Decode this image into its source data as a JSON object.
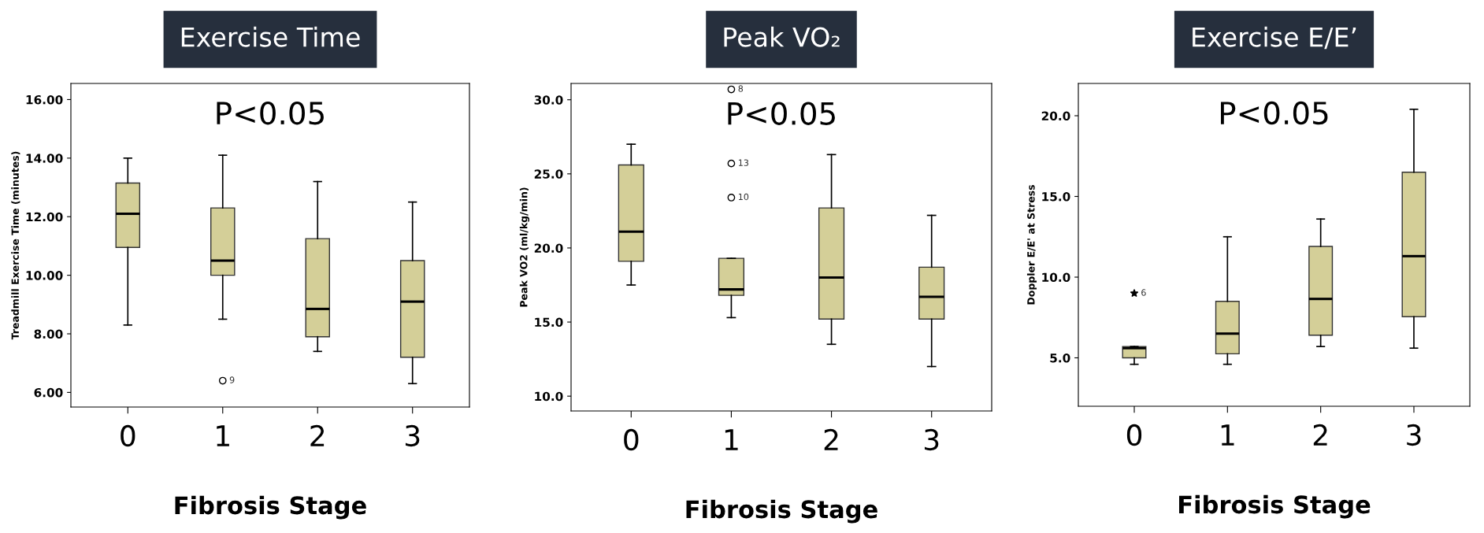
{
  "chart_data": [
    {
      "type": "box",
      "title": "Exercise Time",
      "xlabel": "Fibrosis Stage",
      "ylabel": "Treadmill Exercise Time (minutes)",
      "categories": [
        "0",
        "1",
        "2",
        "3"
      ],
      "color": "#d4cf98",
      "marker": "circle",
      "grid": false,
      "boxes": [
        {
          "low": 8.3,
          "q1": 10.95,
          "median": 12.1,
          "q3": 13.15,
          "high": 14.0
        },
        {
          "low": 8.5,
          "q1": 10.0,
          "median": 10.5,
          "q3": 12.3,
          "high": 14.1,
          "outliers": [
            6.4
          ]
        },
        {
          "low": 7.4,
          "q1": 7.9,
          "median": 8.85,
          "q3": 11.25,
          "high": 13.2
        },
        {
          "low": 6.3,
          "q1": 7.2,
          "median": 9.1,
          "q3": 10.5,
          "high": 12.5
        }
      ],
      "ylim": [
        5.5,
        16.55
      ],
      "yticks": [
        {
          "value": 6,
          "label": "6.00"
        },
        {
          "value": 8,
          "label": "8.00"
        },
        {
          "value": 10,
          "label": "10.00"
        },
        {
          "value": 12,
          "label": "12.00"
        },
        {
          "value": 14,
          "label": "14.00"
        },
        {
          "value": 16,
          "label": "16.00"
        }
      ],
      "annotations": [
        "P<0.05",
        "9"
      ]
    },
    {
      "type": "box",
      "title": "Peak VO₂",
      "xlabel": "Fibrosis Stage",
      "ylabel": "Peak VO2 (ml/kg/min)",
      "categories": [
        "0",
        "1",
        "2",
        "3"
      ],
      "color": "#d4cf98",
      "marker": "circle",
      "grid": false,
      "boxes": [
        {
          "low": 17.5,
          "q1": 19.1,
          "median": 21.1,
          "q3": 25.6,
          "high": 27.0
        },
        {
          "low": 15.3,
          "q1": 16.8,
          "median": 17.2,
          "q3": 19.3,
          "high": 19.3,
          "outliers": [
            23.4,
            25.7,
            30.7
          ]
        },
        {
          "low": 13.5,
          "q1": 15.2,
          "median": 18.0,
          "q3": 22.7,
          "high": 26.3
        },
        {
          "low": 12.0,
          "q1": 15.2,
          "median": 16.7,
          "q3": 18.7,
          "high": 22.2
        }
      ],
      "ylim": [
        9.0,
        31.1
      ],
      "yticks": [
        {
          "value": 10,
          "label": "10.0"
        },
        {
          "value": 15,
          "label": "15.0"
        },
        {
          "value": 20,
          "label": "20.0"
        },
        {
          "value": 25,
          "label": "25.0"
        },
        {
          "value": 30,
          "label": "30.0"
        }
      ],
      "annotations": [
        "P<0.05",
        "10",
        "13",
        "8"
      ]
    },
    {
      "type": "box",
      "title": "Exercise E/E’",
      "xlabel": "Fibrosis Stage",
      "ylabel": "Doppler E/E' at Stress",
      "categories": [
        "0",
        "1",
        "2",
        "3"
      ],
      "color": "#d4cf98",
      "marker": "star",
      "grid": false,
      "boxes": [
        {
          "low": 4.6,
          "q1": 5.0,
          "median": 5.6,
          "q3": 5.7,
          "high": 5.7,
          "outliers": [
            9.0
          ]
        },
        {
          "low": 4.6,
          "q1": 5.25,
          "median": 6.5,
          "q3": 8.5,
          "high": 12.5
        },
        {
          "low": 5.7,
          "q1": 6.4,
          "median": 8.65,
          "q3": 11.9,
          "high": 13.6
        },
        {
          "low": 5.6,
          "q1": 7.55,
          "median": 11.3,
          "q3": 16.5,
          "high": 20.4
        }
      ],
      "ylim": [
        2.0,
        22.0
      ],
      "yticks": [
        {
          "value": 5,
          "label": "5.0"
        },
        {
          "value": 10,
          "label": "10.0"
        },
        {
          "value": 15,
          "label": "15.0"
        },
        {
          "value": 20,
          "label": "20.0"
        }
      ],
      "annotations": [
        "P<0.05",
        "6"
      ]
    }
  ]
}
